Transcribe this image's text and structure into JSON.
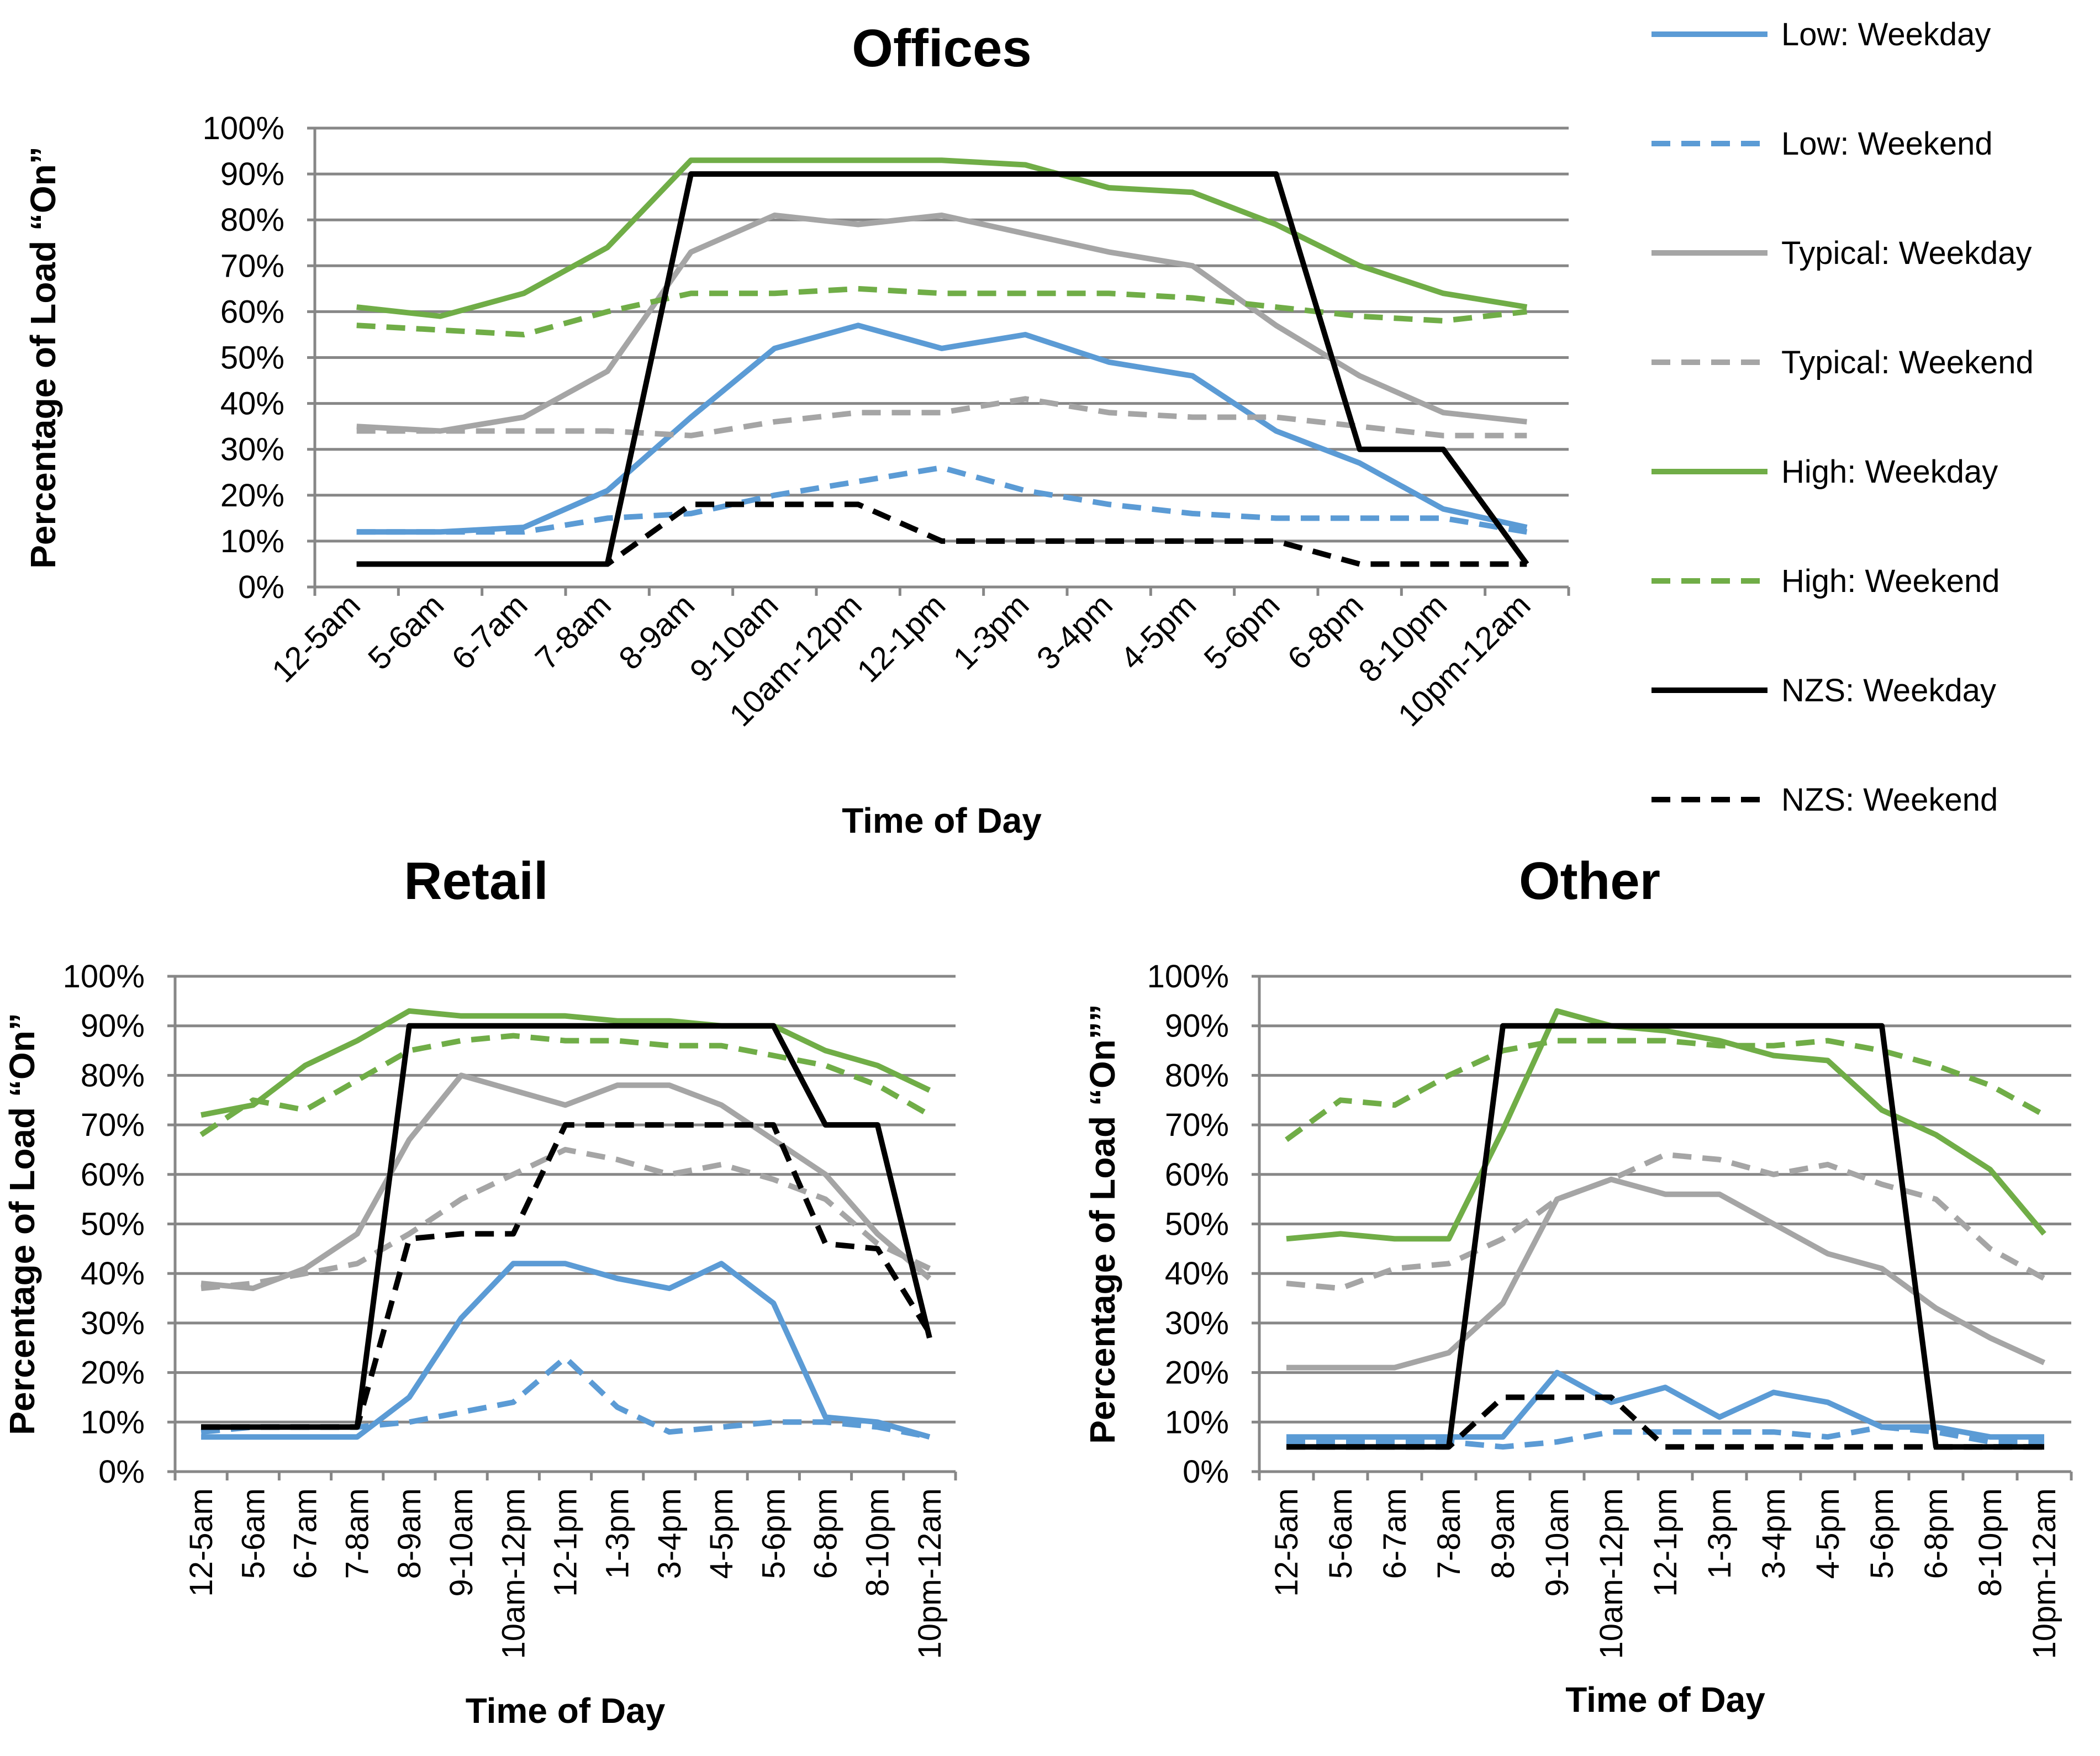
{
  "chart_data": [
    {
      "type": "line",
      "title": "Offices",
      "xlabel": "Time of Day",
      "ylabel": "Percentage of Load “On”",
      "ylim": [
        0,
        100
      ],
      "ytick_labels": [
        "0%",
        "10%",
        "20%",
        "30%",
        "40%",
        "50%",
        "60%",
        "70%",
        "80%",
        "90%",
        "100%"
      ],
      "grid": true,
      "categories": [
        "12-5am",
        "5-6am",
        "6-7am",
        "7-8am",
        "8-9am",
        "9-10am",
        "10am-12pm",
        "12-1pm",
        "1-3pm",
        "3-4pm",
        "4-5pm",
        "5-6pm",
        "6-8pm",
        "8-10pm",
        "10pm-12am"
      ],
      "series": [
        {
          "name": "Low: Weekday",
          "color": "#5b9bd5",
          "dash": false,
          "values": [
            12,
            12,
            13,
            21,
            37,
            52,
            57,
            52,
            55,
            49,
            46,
            34,
            27,
            17,
            13
          ]
        },
        {
          "name": "Low: Weekend",
          "color": "#5b9bd5",
          "dash": true,
          "values": [
            12,
            12,
            12,
            15,
            16,
            20,
            23,
            26,
            21,
            18,
            16,
            15,
            15,
            15,
            12
          ]
        },
        {
          "name": "Typical: Weekday",
          "color": "#a5a5a5",
          "dash": false,
          "values": [
            35,
            34,
            37,
            47,
            73,
            81,
            79,
            81,
            77,
            73,
            70,
            57,
            46,
            38,
            36
          ]
        },
        {
          "name": "Typical: Weekend",
          "color": "#a5a5a5",
          "dash": true,
          "values": [
            34,
            34,
            34,
            34,
            33,
            36,
            38,
            38,
            41,
            38,
            37,
            37,
            35,
            33,
            33
          ]
        },
        {
          "name": "High: Weekday",
          "color": "#70ad47",
          "dash": false,
          "values": [
            61,
            59,
            64,
            74,
            93,
            93,
            93,
            93,
            92,
            87,
            86,
            79,
            70,
            64,
            61
          ]
        },
        {
          "name": "High: Weekend",
          "color": "#70ad47",
          "dash": true,
          "values": [
            57,
            56,
            55,
            60,
            64,
            64,
            65,
            64,
            64,
            64,
            63,
            61,
            59,
            58,
            60
          ]
        },
        {
          "name": "NZS: Weekday",
          "color": "#000000",
          "dash": false,
          "values": [
            5,
            5,
            5,
            5,
            90,
            90,
            90,
            90,
            90,
            90,
            90,
            90,
            30,
            30,
            5
          ]
        },
        {
          "name": "NZS: Weekend",
          "color": "#000000",
          "dash": true,
          "values": [
            5,
            5,
            5,
            5,
            18,
            18,
            18,
            10,
            10,
            10,
            10,
            10,
            5,
            5,
            5
          ]
        }
      ]
    },
    {
      "type": "line",
      "title": "Retail",
      "xlabel": "Time of Day",
      "ylabel": "Percentage of Load “On”",
      "ylim": [
        0,
        100
      ],
      "ytick_labels": [
        "0%",
        "10%",
        "20%",
        "30%",
        "40%",
        "50%",
        "60%",
        "70%",
        "80%",
        "90%",
        "100%"
      ],
      "grid": true,
      "categories": [
        "12-5am",
        "5-6am",
        "6-7am",
        "7-8am",
        "8-9am",
        "9-10am",
        "10am-12pm",
        "12-1pm",
        "1-3pm",
        "3-4pm",
        "4-5pm",
        "5-6pm",
        "6-8pm",
        "8-10pm",
        "10pm-12am"
      ],
      "series": [
        {
          "name": "Low: Weekday",
          "color": "#5b9bd5",
          "dash": false,
          "values": [
            7,
            7,
            7,
            7,
            15,
            31,
            42,
            42,
            39,
            37,
            42,
            34,
            11,
            10,
            7
          ]
        },
        {
          "name": "Low: Weekend",
          "color": "#5b9bd5",
          "dash": true,
          "values": [
            8,
            9,
            9,
            9,
            10,
            12,
            14,
            23,
            13,
            8,
            9,
            10,
            10,
            9,
            7
          ]
        },
        {
          "name": "Typical: Weekday",
          "color": "#a5a5a5",
          "dash": false,
          "values": [
            38,
            37,
            41,
            48,
            67,
            80,
            77,
            74,
            78,
            78,
            74,
            67,
            60,
            48,
            39
          ]
        },
        {
          "name": "Typical: Weekend",
          "color": "#a5a5a5",
          "dash": true,
          "values": [
            37,
            38,
            40,
            42,
            48,
            55,
            60,
            65,
            63,
            60,
            62,
            59,
            55,
            46,
            41
          ]
        },
        {
          "name": "High: Weekday",
          "color": "#70ad47",
          "dash": false,
          "values": [
            72,
            74,
            82,
            87,
            93,
            92,
            92,
            92,
            91,
            91,
            90,
            90,
            85,
            82,
            77
          ]
        },
        {
          "name": "High: Weekend",
          "color": "#70ad47",
          "dash": true,
          "values": [
            68,
            75,
            73,
            79,
            85,
            87,
            88,
            87,
            87,
            86,
            86,
            84,
            82,
            78,
            72
          ]
        },
        {
          "name": "NZS: Weekday",
          "color": "#000000",
          "dash": false,
          "values": [
            9,
            9,
            9,
            9,
            90,
            90,
            90,
            90,
            90,
            90,
            90,
            90,
            70,
            70,
            27
          ]
        },
        {
          "name": "NZS: Weekend",
          "color": "#000000",
          "dash": true,
          "values": [
            9,
            9,
            9,
            9,
            47,
            48,
            48,
            70,
            70,
            70,
            70,
            70,
            46,
            45,
            28
          ]
        }
      ]
    },
    {
      "type": "line",
      "title": "Other",
      "xlabel": "Time of Day",
      "ylabel": "Percentage of Load “On””",
      "ylim": [
        0,
        100
      ],
      "ytick_labels": [
        "0%",
        "10%",
        "20%",
        "30%",
        "40%",
        "50%",
        "60%",
        "70%",
        "80%",
        "90%",
        "100%"
      ],
      "grid": true,
      "categories": [
        "12-5am",
        "5-6am",
        "6-7am",
        "7-8am",
        "8-9am",
        "9-10am",
        "10am-12pm",
        "12-1pm",
        "1-3pm",
        "3-4pm",
        "4-5pm",
        "5-6pm",
        "6-8pm",
        "8-10pm",
        "10pm-12am"
      ],
      "series": [
        {
          "name": "Low: Weekday",
          "color": "#5b9bd5",
          "dash": false,
          "values": [
            7,
            7,
            7,
            7,
            7,
            20,
            14,
            17,
            11,
            16,
            14,
            9,
            9,
            7,
            7
          ]
        },
        {
          "name": "Low: Weekend",
          "color": "#5b9bd5",
          "dash": true,
          "values": [
            6,
            6,
            6,
            6,
            5,
            6,
            8,
            8,
            8,
            8,
            7,
            9,
            8,
            6,
            6
          ]
        },
        {
          "name": "Typical: Weekday",
          "color": "#a5a5a5",
          "dash": false,
          "values": [
            21,
            21,
            21,
            24,
            34,
            55,
            59,
            56,
            56,
            50,
            44,
            41,
            33,
            27,
            22
          ]
        },
        {
          "name": "Typical: Weekend",
          "color": "#a5a5a5",
          "dash": true,
          "values": [
            38,
            37,
            41,
            42,
            47,
            55,
            59,
            64,
            63,
            60,
            62,
            58,
            55,
            45,
            39
          ]
        },
        {
          "name": "High: Weekday",
          "color": "#70ad47",
          "dash": false,
          "values": [
            47,
            48,
            47,
            47,
            69,
            93,
            90,
            89,
            87,
            84,
            83,
            73,
            68,
            61,
            48
          ]
        },
        {
          "name": "High: Weekend",
          "color": "#70ad47",
          "dash": true,
          "values": [
            67,
            75,
            74,
            80,
            85,
            87,
            87,
            87,
            86,
            86,
            87,
            85,
            82,
            78,
            72
          ]
        },
        {
          "name": "NZS: Weekday",
          "color": "#000000",
          "dash": false,
          "values": [
            5,
            5,
            5,
            5,
            90,
            90,
            90,
            90,
            90,
            90,
            90,
            90,
            5,
            5,
            5
          ]
        },
        {
          "name": "NZS: Weekend",
          "color": "#000000",
          "dash": true,
          "values": [
            5,
            5,
            5,
            5,
            15,
            15,
            15,
            5,
            5,
            5,
            5,
            5,
            5,
            5,
            5
          ]
        }
      ]
    }
  ],
  "legend": {
    "placement": "top-right",
    "items": [
      {
        "label": "Low: Weekday",
        "color": "#5b9bd5",
        "dash": false
      },
      {
        "label": "Low: Weekend",
        "color": "#5b9bd5",
        "dash": true
      },
      {
        "label": "Typical: Weekday",
        "color": "#a5a5a5",
        "dash": false
      },
      {
        "label": "Typical: Weekend",
        "color": "#a5a5a5",
        "dash": true
      },
      {
        "label": "High: Weekday",
        "color": "#70ad47",
        "dash": false
      },
      {
        "label": "High: Weekend",
        "color": "#70ad47",
        "dash": true
      },
      {
        "label": "NZS: Weekday",
        "color": "#000000",
        "dash": false
      },
      {
        "label": "NZS: Weekend",
        "color": "#000000",
        "dash": true
      }
    ]
  }
}
